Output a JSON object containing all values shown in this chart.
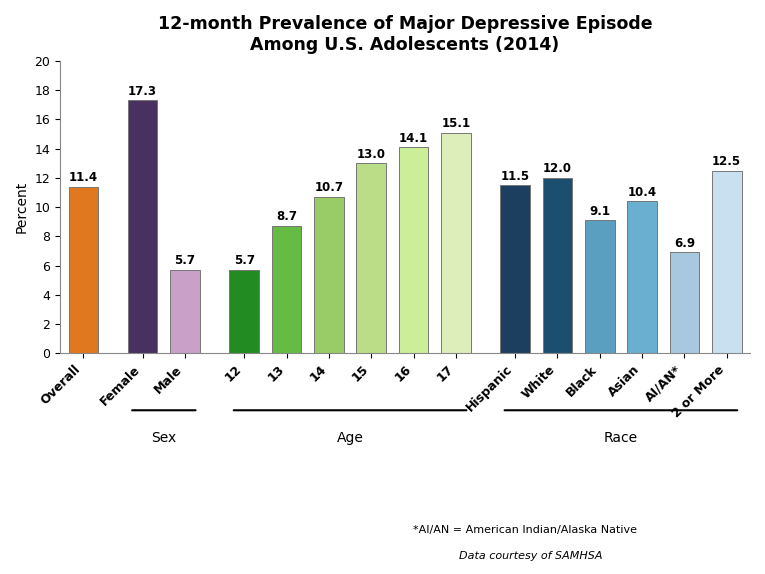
{
  "title": "12-month Prevalence of Major Depressive Episode\nAmong U.S. Adolescents (2014)",
  "ylabel": "Percent",
  "ylim": [
    0,
    20
  ],
  "yticks": [
    0,
    2,
    4,
    6,
    8,
    10,
    12,
    14,
    16,
    18,
    20
  ],
  "bars": [
    {
      "label": "Overall",
      "value": 11.4,
      "color": "#E07820",
      "group": "overall"
    },
    {
      "label": "Female",
      "value": 17.3,
      "color": "#483060",
      "group": "sex"
    },
    {
      "label": "Male",
      "value": 5.7,
      "color": "#C8A0C8",
      "group": "sex"
    },
    {
      "label": "12",
      "value": 5.7,
      "color": "#228B22",
      "group": "age"
    },
    {
      "label": "13",
      "value": 8.7,
      "color": "#66BB44",
      "group": "age"
    },
    {
      "label": "14",
      "value": 10.7,
      "color": "#99CC66",
      "group": "age"
    },
    {
      "label": "15",
      "value": 13.0,
      "color": "#BBDD88",
      "group": "age"
    },
    {
      "label": "16",
      "value": 14.1,
      "color": "#CCEE99",
      "group": "age"
    },
    {
      "label": "17",
      "value": 15.1,
      "color": "#DDEEBB",
      "group": "age"
    },
    {
      "label": "Hispanic",
      "value": 11.5,
      "color": "#1C3F5F",
      "group": "race"
    },
    {
      "label": "White",
      "value": 12.0,
      "color": "#1C4F6F",
      "group": "race"
    },
    {
      "label": "Black",
      "value": 9.1,
      "color": "#5B9FC0",
      "group": "race"
    },
    {
      "label": "Asian",
      "value": 10.4,
      "color": "#6AAFD0",
      "group": "race"
    },
    {
      "label": "AI/AN*",
      "value": 6.9,
      "color": "#A8C8E0",
      "group": "race"
    },
    {
      "label": "2 or More",
      "value": 12.5,
      "color": "#C8E0F0",
      "group": "race"
    }
  ],
  "groups_info": [
    {
      "name": "Sex",
      "group_key": "sex"
    },
    {
      "name": "Age",
      "group_key": "age"
    },
    {
      "name": "Race",
      "group_key": "race"
    }
  ],
  "footnote1": "*AI/AN = American Indian/Alaska Native",
  "footnote2": "Data courtesy of SAMHSA",
  "background_color": "#FFFFFF",
  "bar_width": 0.7,
  "value_fontsize": 8.5,
  "title_fontsize": 12.5,
  "axis_label_fontsize": 10,
  "tick_fontsize": 9,
  "group_label_fontsize": 10,
  "footnote1_fontsize": 8,
  "footnote2_fontsize": 8
}
